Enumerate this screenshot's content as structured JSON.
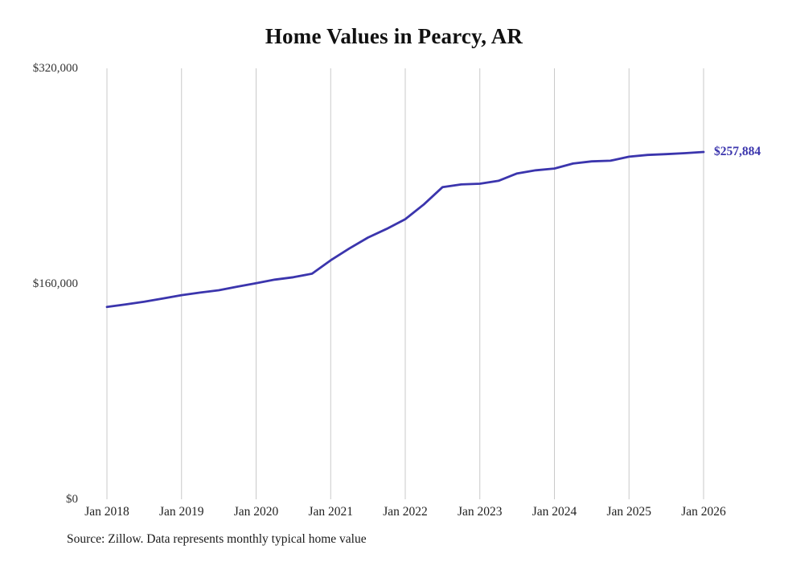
{
  "chart_data": {
    "type": "line",
    "title": "Home Values in Pearcy, AR",
    "series_name": "Monthly typical home value",
    "x": [
      "2018-01",
      "2018-04",
      "2018-07",
      "2018-10",
      "2019-01",
      "2019-04",
      "2019-07",
      "2019-10",
      "2020-01",
      "2020-04",
      "2020-07",
      "2020-10",
      "2021-01",
      "2021-04",
      "2021-07",
      "2021-10",
      "2022-01",
      "2022-04",
      "2022-07",
      "2022-10",
      "2023-01",
      "2023-04",
      "2023-07",
      "2023-10",
      "2024-01",
      "2024-04",
      "2024-07",
      "2024-10",
      "2025-01",
      "2025-04",
      "2025-07",
      "2025-10",
      "2026-01"
    ],
    "values": [
      142800,
      144700,
      146700,
      149100,
      151600,
      153500,
      155200,
      157900,
      160500,
      163100,
      164900,
      167500,
      177500,
      186200,
      194300,
      200800,
      208000,
      219000,
      231800,
      233800,
      234300,
      236500,
      242000,
      244300,
      245600,
      249300,
      250900,
      251400,
      254400,
      255700,
      256300,
      257000,
      257884
    ],
    "ylim": [
      0,
      320000
    ],
    "yticks": [
      {
        "value": 0,
        "label": "$0"
      },
      {
        "value": 160000,
        "label": "$160,000"
      },
      {
        "value": 320000,
        "label": "$320,000"
      }
    ],
    "xticks": [
      {
        "x": "2018-01",
        "label": "Jan 2018"
      },
      {
        "x": "2019-01",
        "label": "Jan 2019"
      },
      {
        "x": "2020-01",
        "label": "Jan 2020"
      },
      {
        "x": "2021-01",
        "label": "Jan 2021"
      },
      {
        "x": "2022-01",
        "label": "Jan 2022"
      },
      {
        "x": "2023-01",
        "label": "Jan 2023"
      },
      {
        "x": "2024-01",
        "label": "Jan 2024"
      },
      {
        "x": "2025-01",
        "label": "Jan 2025"
      },
      {
        "x": "2026-01",
        "label": "Jan 2026"
      }
    ],
    "end_label": "$257,884",
    "line_color": "#3b35ad",
    "grid_color": "#c9c9c9",
    "grid": "vertical",
    "legend": "none",
    "source_note": "Source: Zillow. Data represents monthly typical home value"
  }
}
